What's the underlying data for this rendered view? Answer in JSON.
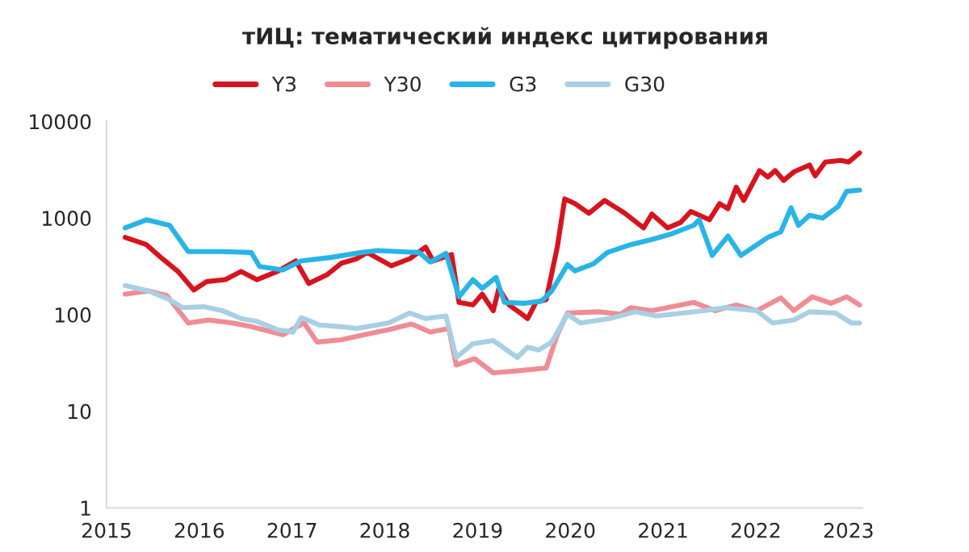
{
  "chart_data": {
    "type": "line",
    "title": "тИЦ: тематический индекс цитирования",
    "legend": "top",
    "grid": false,
    "log": "y",
    "line_style": "solid",
    "marker": "none",
    "xlim": [
      2015,
      2023.15
    ],
    "xticks": [
      2015,
      2016,
      2017,
      2018,
      2019,
      2020,
      2021,
      2022,
      2023
    ],
    "ylim": [
      1,
      10000
    ],
    "yticks": [
      1,
      10,
      100,
      1000,
      10000
    ],
    "series": [
      {
        "name": "Y3",
        "color": "#d7141e",
        "x": [
          2015.2,
          2015.43,
          2015.6,
          2015.77,
          2015.94,
          2016.08,
          2016.28,
          2016.45,
          2016.62,
          2016.84,
          2017.04,
          2017.18,
          2017.38,
          2017.53,
          2017.7,
          2017.81,
          2018.07,
          2018.27,
          2018.44,
          2018.52,
          2018.72,
          2018.8,
          2018.95,
          2019.05,
          2019.17,
          2019.23,
          2019.34,
          2019.46,
          2019.54,
          2019.63,
          2019.74,
          2019.86,
          2019.94,
          2020.05,
          2020.2,
          2020.37,
          2020.59,
          2020.79,
          2020.88,
          2021.05,
          2021.19,
          2021.3,
          2021.5,
          2021.61,
          2021.7,
          2021.79,
          2021.87,
          2022.04,
          2022.13,
          2022.21,
          2022.3,
          2022.41,
          2022.58,
          2022.64,
          2022.75,
          2022.92,
          2023.0,
          2023.12
        ],
        "values": [
          630,
          530,
          380,
          280,
          180,
          220,
          230,
          280,
          230,
          280,
          360,
          210,
          260,
          340,
          380,
          440,
          320,
          380,
          500,
          360,
          420,
          134,
          126,
          163,
          110,
          187,
          126,
          104,
          91,
          134,
          143,
          500,
          1580,
          1410,
          1120,
          1520,
          1120,
          790,
          1100,
          790,
          900,
          1170,
          960,
          1410,
          1250,
          2090,
          1520,
          3100,
          2660,
          3100,
          2450,
          3000,
          3540,
          2730,
          3800,
          3950,
          3800,
          4730
        ]
      },
      {
        "name": "Y30",
        "color": "#ef8c94",
        "x": [
          2015.2,
          2015.45,
          2015.65,
          2015.88,
          2016.1,
          2016.36,
          2016.56,
          2016.79,
          2016.9,
          2017.13,
          2017.27,
          2017.53,
          2017.81,
          2018.04,
          2018.29,
          2018.49,
          2018.69,
          2018.77,
          2018.97,
          2019.17,
          2019.4,
          2019.74,
          2019.86,
          2019.97,
          2020.31,
          2020.54,
          2020.65,
          2020.88,
          2021.33,
          2021.56,
          2021.79,
          2022.01,
          2022.27,
          2022.41,
          2022.61,
          2022.81,
          2022.98,
          2023.12
        ],
        "values": [
          163,
          176,
          158,
          82,
          88,
          82,
          75,
          66,
          62,
          82,
          52,
          55,
          63,
          70,
          80,
          66,
          72,
          30,
          35,
          25,
          26,
          28,
          62,
          104,
          107,
          101,
          118,
          110,
          134,
          110,
          126,
          110,
          149,
          110,
          153,
          131,
          153,
          126
        ]
      },
      {
        "name": "G3",
        "color": "#28b4e6",
        "x": [
          2015.2,
          2015.43,
          2015.68,
          2015.88,
          2016.24,
          2016.56,
          2016.65,
          2016.9,
          2017.1,
          2017.41,
          2017.75,
          2017.92,
          2018.37,
          2018.49,
          2018.66,
          2018.8,
          2018.95,
          2019.05,
          2019.2,
          2019.29,
          2019.51,
          2019.69,
          2019.8,
          2019.97,
          2020.05,
          2020.25,
          2020.4,
          2020.65,
          2020.88,
          2021.1,
          2021.33,
          2021.39,
          2021.53,
          2021.7,
          2021.84,
          2022.13,
          2022.27,
          2022.38,
          2022.46,
          2022.58,
          2022.72,
          2022.89,
          2022.98,
          2023.12
        ],
        "values": [
          790,
          960,
          840,
          450,
          450,
          440,
          315,
          290,
          360,
          390,
          440,
          460,
          440,
          350,
          430,
          153,
          230,
          187,
          243,
          134,
          131,
          138,
          176,
          330,
          284,
          336,
          440,
          530,
          600,
          690,
          840,
          960,
          410,
          650,
          410,
          630,
          720,
          1280,
          840,
          1070,
          1000,
          1320,
          1890,
          1950
        ]
      },
      {
        "name": "G30",
        "color": "#a8cfe3",
        "x": [
          2015.2,
          2015.45,
          2015.68,
          2015.82,
          2016.05,
          2016.25,
          2016.45,
          2016.62,
          2016.84,
          2017.01,
          2017.1,
          2017.3,
          2017.53,
          2017.7,
          2017.81,
          2018.04,
          2018.27,
          2018.44,
          2018.66,
          2018.77,
          2018.95,
          2019.17,
          2019.43,
          2019.54,
          2019.66,
          2019.8,
          2019.97,
          2020.11,
          2020.42,
          2020.7,
          2020.93,
          2021.44,
          2021.67,
          2022.01,
          2022.18,
          2022.41,
          2022.58,
          2022.86,
          2023.03,
          2023.12
        ],
        "values": [
          200,
          176,
          143,
          118,
          121,
          110,
          91,
          85,
          70,
          66,
          93,
          78,
          75,
          72,
          75,
          82,
          104,
          91,
          97,
          36,
          50,
          54,
          36,
          46,
          43,
          52,
          101,
          82,
          91,
          107,
          97,
          110,
          118,
          110,
          82,
          88,
          107,
          104,
          82,
          82
        ]
      }
    ]
  }
}
